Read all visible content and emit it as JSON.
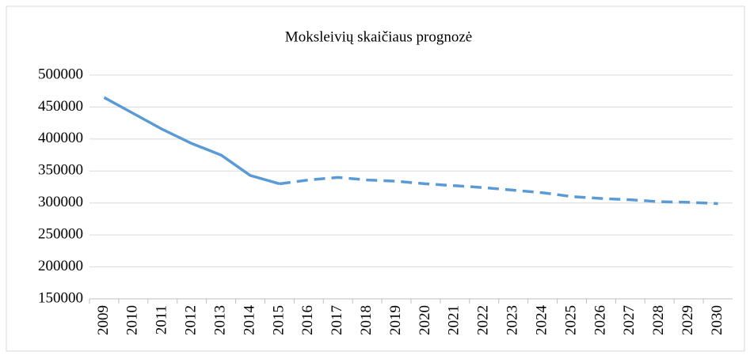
{
  "chart_data": {
    "type": "line",
    "title": "Moksleivių skaičiaus prognozė",
    "categories": [
      "2009",
      "2010",
      "2011",
      "2012",
      "2013",
      "2014",
      "2015",
      "2016",
      "2017",
      "2018",
      "2019",
      "2020",
      "2021",
      "2022",
      "2023",
      "2024",
      "2025",
      "2026",
      "2027",
      "2028",
      "2029",
      "2030"
    ],
    "values": [
      465000,
      440000,
      415000,
      393000,
      375000,
      343000,
      330000,
      336000,
      340000,
      336000,
      334000,
      330000,
      327000,
      324000,
      320000,
      316000,
      310000,
      307000,
      305000,
      302000,
      301000,
      299000
    ],
    "color": "#5b9bd5",
    "dashed_from": "2015",
    "ylim": [
      150000,
      500000
    ],
    "yticks": [
      150000,
      200000,
      250000,
      300000,
      350000,
      400000,
      450000,
      500000
    ],
    "grid": true
  }
}
